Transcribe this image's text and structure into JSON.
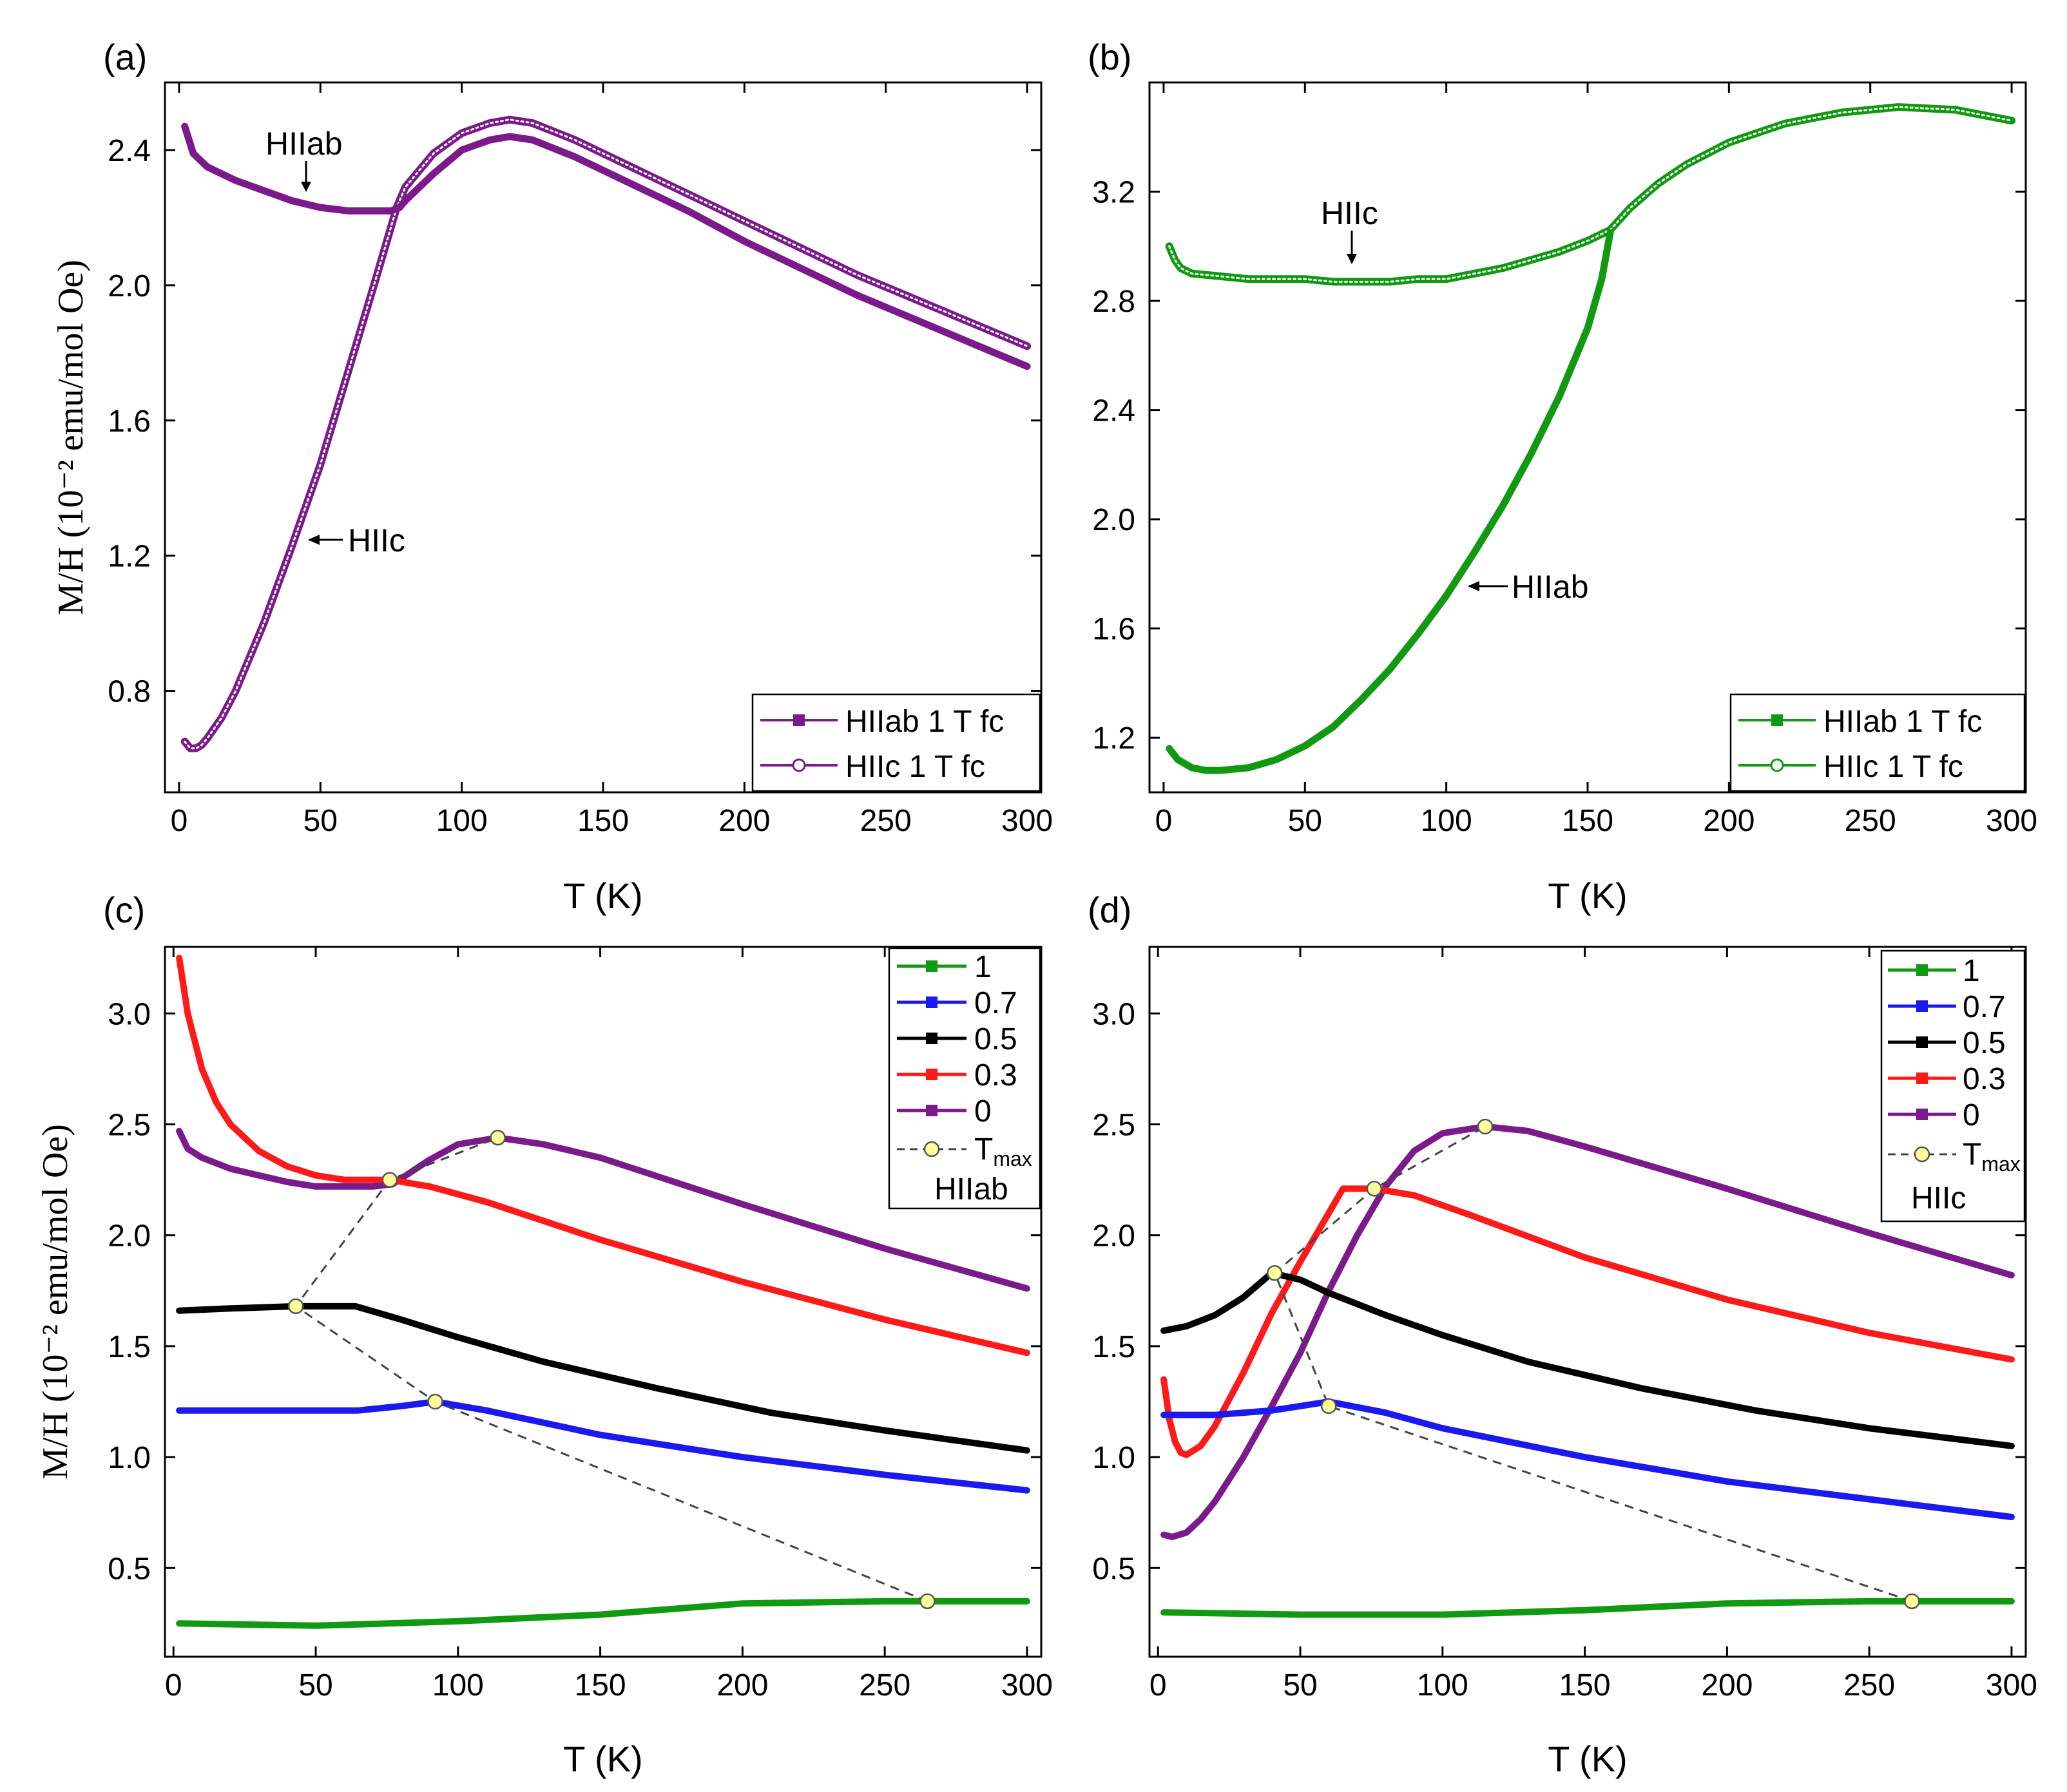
{
  "colors": {
    "purple": "#7b1a8a",
    "green": "#119911",
    "blue": "#1a1aee",
    "black": "#000000",
    "red": "#ff1a1a",
    "tmax_fill": "#ffff99"
  },
  "chart_data": [
    {
      "panel": "(a)",
      "type": "line",
      "xlabel": "T (K)",
      "ylabel": "M/H (10⁻² emu/mol Oe)",
      "xlim": [
        -5,
        305
      ],
      "ylim": [
        0.5,
        2.6
      ],
      "xticks": [
        0,
        50,
        100,
        150,
        200,
        250,
        300
      ],
      "yticks": [
        0.8,
        1.2,
        1.6,
        2.0,
        2.4
      ],
      "ytick_labels": [
        "0.8",
        "1.2",
        "1.6",
        "2.0",
        "2.4"
      ],
      "legend": [
        "HIIab 1 T fc",
        "HIIc 1 T fc"
      ],
      "annotations": [
        {
          "text": "HIIab",
          "x": 44,
          "y": 2.33
        },
        {
          "text": "HIIc",
          "x": 52,
          "y": 1.25
        }
      ],
      "series": [
        {
          "name": "HIIab 1 T fc",
          "color": "purple",
          "marker": "filled",
          "x": [
            2,
            5,
            10,
            20,
            30,
            40,
            50,
            60,
            70,
            75,
            78,
            80,
            90,
            100,
            110,
            117,
            125,
            140,
            160,
            180,
            200,
            220,
            240,
            260,
            280,
            300
          ],
          "y": [
            2.47,
            2.39,
            2.35,
            2.31,
            2.28,
            2.25,
            2.23,
            2.22,
            2.22,
            2.22,
            2.23,
            2.25,
            2.33,
            2.4,
            2.43,
            2.44,
            2.43,
            2.38,
            2.3,
            2.22,
            2.13,
            2.05,
            1.97,
            1.9,
            1.83,
            1.76
          ]
        },
        {
          "name": "HIIc 1 T fc",
          "color": "purple",
          "marker": "open",
          "x": [
            2,
            4,
            6,
            8,
            10,
            15,
            20,
            25,
            30,
            40,
            50,
            60,
            70,
            77,
            80,
            90,
            100,
            110,
            117,
            125,
            140,
            160,
            180,
            200,
            220,
            240,
            260,
            280,
            300
          ],
          "y": [
            0.65,
            0.63,
            0.63,
            0.64,
            0.66,
            0.72,
            0.8,
            0.9,
            1.0,
            1.23,
            1.47,
            1.75,
            2.03,
            2.23,
            2.29,
            2.39,
            2.45,
            2.48,
            2.49,
            2.48,
            2.43,
            2.35,
            2.27,
            2.19,
            2.11,
            2.03,
            1.96,
            1.89,
            1.82
          ]
        }
      ]
    },
    {
      "panel": "(b)",
      "type": "line",
      "xlabel": "T (K)",
      "ylabel": "",
      "xlim": [
        -5,
        305
      ],
      "ylim": [
        1.0,
        3.6
      ],
      "xticks": [
        0,
        50,
        100,
        150,
        200,
        250,
        300
      ],
      "yticks": [
        1.2,
        1.6,
        2.0,
        2.4,
        2.8,
        3.2
      ],
      "ytick_labels": [
        "1.2",
        "1.6",
        "2.0",
        "2.4",
        "2.8",
        "3.2"
      ],
      "legend": [
        "HIIab 1 T fc",
        "HIIc 1 T fc"
      ],
      "annotations": [
        {
          "text": "HIIc",
          "x": 68,
          "y": 2.96
        },
        {
          "text": "HIIab",
          "x": 104,
          "y": 1.76
        }
      ],
      "series": [
        {
          "name": "HIIab 1 T fc",
          "color": "green",
          "marker": "filled",
          "x": [
            2,
            5,
            10,
            15,
            20,
            30,
            40,
            50,
            60,
            70,
            80,
            90,
            100,
            110,
            120,
            130,
            140,
            150,
            155,
            158
          ],
          "y": [
            1.16,
            1.12,
            1.09,
            1.08,
            1.08,
            1.09,
            1.12,
            1.17,
            1.24,
            1.34,
            1.45,
            1.58,
            1.72,
            1.88,
            2.05,
            2.24,
            2.45,
            2.7,
            2.88,
            3.05
          ]
        },
        {
          "name": "HIIc 1 T fc",
          "color": "green",
          "marker": "open",
          "x": [
            2,
            4,
            6,
            10,
            20,
            30,
            40,
            50,
            60,
            70,
            80,
            90,
            100,
            110,
            120,
            130,
            140,
            150,
            158,
            165,
            175,
            185,
            200,
            220,
            240,
            260,
            280,
            300
          ],
          "y": [
            3.0,
            2.95,
            2.92,
            2.9,
            2.89,
            2.88,
            2.88,
            2.88,
            2.87,
            2.87,
            2.87,
            2.88,
            2.88,
            2.9,
            2.92,
            2.95,
            2.98,
            3.02,
            3.06,
            3.14,
            3.23,
            3.3,
            3.38,
            3.45,
            3.49,
            3.51,
            3.5,
            3.46
          ]
        }
      ]
    },
    {
      "panel": "(c)",
      "type": "line",
      "xlabel": "T (K)",
      "ylabel": "M/H (10⁻² emu/mol Oe)",
      "xlim": [
        -3,
        305
      ],
      "ylim": [
        0.1,
        3.3
      ],
      "xticks": [
        0,
        50,
        100,
        150,
        200,
        250,
        300
      ],
      "yticks": [
        0.5,
        1.0,
        1.5,
        2.0,
        2.5,
        3.0
      ],
      "ytick_labels": [
        "0.5",
        "1.0",
        "1.5",
        "2.0",
        "2.5",
        "3.0"
      ],
      "legend": [
        "1",
        "0.7",
        "0.5",
        "0.3",
        "0",
        "T_max"
      ],
      "legend_note": "HIIab",
      "series": [
        {
          "name": "1",
          "color": "green",
          "x": [
            2,
            50,
            100,
            150,
            200,
            250,
            300
          ],
          "y": [
            0.25,
            0.24,
            0.26,
            0.29,
            0.34,
            0.35,
            0.35
          ]
        },
        {
          "name": "0.7",
          "color": "blue",
          "x": [
            2,
            30,
            65,
            80,
            92,
            110,
            150,
            200,
            250,
            300
          ],
          "y": [
            1.21,
            1.21,
            1.21,
            1.23,
            1.25,
            1.21,
            1.1,
            1.0,
            0.92,
            0.85
          ]
        },
        {
          "name": "0.5",
          "color": "black",
          "x": [
            2,
            20,
            43,
            64,
            80,
            100,
            130,
            170,
            210,
            250,
            300
          ],
          "y": [
            1.66,
            1.67,
            1.68,
            1.68,
            1.62,
            1.54,
            1.43,
            1.31,
            1.2,
            1.12,
            1.03
          ]
        },
        {
          "name": "0.3",
          "color": "red",
          "x": [
            2,
            5,
            10,
            15,
            20,
            30,
            40,
            50,
            60,
            76,
            90,
            110,
            150,
            200,
            250,
            300
          ],
          "y": [
            3.25,
            3.0,
            2.75,
            2.6,
            2.5,
            2.38,
            2.31,
            2.27,
            2.25,
            2.25,
            2.22,
            2.15,
            1.98,
            1.79,
            1.62,
            1.47
          ]
        },
        {
          "name": "0",
          "color": "purple",
          "x": [
            2,
            5,
            10,
            20,
            30,
            40,
            50,
            60,
            70,
            77,
            90,
            100,
            114,
            130,
            150,
            200,
            250,
            300
          ],
          "y": [
            2.47,
            2.39,
            2.35,
            2.3,
            2.27,
            2.24,
            2.22,
            2.22,
            2.22,
            2.23,
            2.34,
            2.41,
            2.44,
            2.41,
            2.35,
            2.14,
            1.94,
            1.76
          ]
        }
      ],
      "tmax_path": {
        "x": [
          265,
          92,
          43,
          76,
          114
        ],
        "y": [
          0.35,
          1.25,
          1.68,
          2.25,
          2.44
        ]
      },
      "tmax_points": {
        "x": [
          265,
          92,
          43,
          76,
          114
        ],
        "y": [
          0.35,
          1.25,
          1.68,
          2.25,
          2.44
        ]
      }
    },
    {
      "panel": "(d)",
      "type": "line",
      "xlabel": "T (K)",
      "ylabel": "",
      "xlim": [
        -3,
        305
      ],
      "ylim": [
        0.1,
        3.3
      ],
      "xticks": [
        0,
        50,
        100,
        150,
        200,
        250,
        300
      ],
      "yticks": [
        0.5,
        1.0,
        1.5,
        2.0,
        2.5,
        3.0
      ],
      "ytick_labels": [
        "0.5",
        "1.0",
        "1.5",
        "2.0",
        "2.5",
        "3.0"
      ],
      "legend": [
        "1",
        "0.7",
        "0.5",
        "0.3",
        "0",
        "T_max"
      ],
      "legend_note": "HIIc",
      "series": [
        {
          "name": "1",
          "color": "green",
          "x": [
            2,
            50,
            100,
            150,
            200,
            250,
            300
          ],
          "y": [
            0.3,
            0.29,
            0.29,
            0.31,
            0.34,
            0.35,
            0.35
          ]
        },
        {
          "name": "0.7",
          "color": "blue",
          "x": [
            2,
            20,
            40,
            55,
            60,
            80,
            100,
            150,
            200,
            250,
            300
          ],
          "y": [
            1.19,
            1.19,
            1.21,
            1.24,
            1.25,
            1.2,
            1.13,
            1.0,
            0.89,
            0.81,
            0.73
          ]
        },
        {
          "name": "0.5",
          "color": "black",
          "x": [
            2,
            10,
            20,
            30,
            40,
            50,
            60,
            80,
            100,
            130,
            170,
            210,
            250,
            300
          ],
          "y": [
            1.57,
            1.59,
            1.64,
            1.72,
            1.83,
            1.8,
            1.74,
            1.64,
            1.55,
            1.43,
            1.31,
            1.21,
            1.13,
            1.05
          ]
        },
        {
          "name": "0.3",
          "color": "red",
          "x": [
            2,
            4,
            6,
            8,
            10,
            15,
            20,
            30,
            40,
            50,
            60,
            65,
            76,
            90,
            110,
            150,
            200,
            250,
            300
          ],
          "y": [
            1.35,
            1.17,
            1.07,
            1.02,
            1.01,
            1.05,
            1.14,
            1.38,
            1.65,
            1.88,
            2.1,
            2.21,
            2.21,
            2.18,
            2.09,
            1.9,
            1.71,
            1.56,
            1.44
          ]
        },
        {
          "name": "0",
          "color": "purple",
          "x": [
            2,
            5,
            10,
            15,
            20,
            30,
            40,
            50,
            60,
            70,
            80,
            90,
            100,
            115,
            130,
            150,
            200,
            250,
            300
          ],
          "y": [
            0.65,
            0.64,
            0.66,
            0.72,
            0.8,
            1.0,
            1.23,
            1.47,
            1.75,
            2.0,
            2.22,
            2.38,
            2.46,
            2.49,
            2.47,
            2.4,
            2.21,
            2.01,
            1.82
          ]
        }
      ],
      "tmax_path": {
        "x": [
          265,
          60,
          41,
          76,
          115
        ],
        "y": [
          0.35,
          1.23,
          1.83,
          2.21,
          2.49
        ]
      },
      "tmax_points": {
        "x": [
          265,
          60,
          41,
          76,
          115
        ],
        "y": [
          0.35,
          1.23,
          1.83,
          2.21,
          2.49
        ]
      }
    }
  ]
}
